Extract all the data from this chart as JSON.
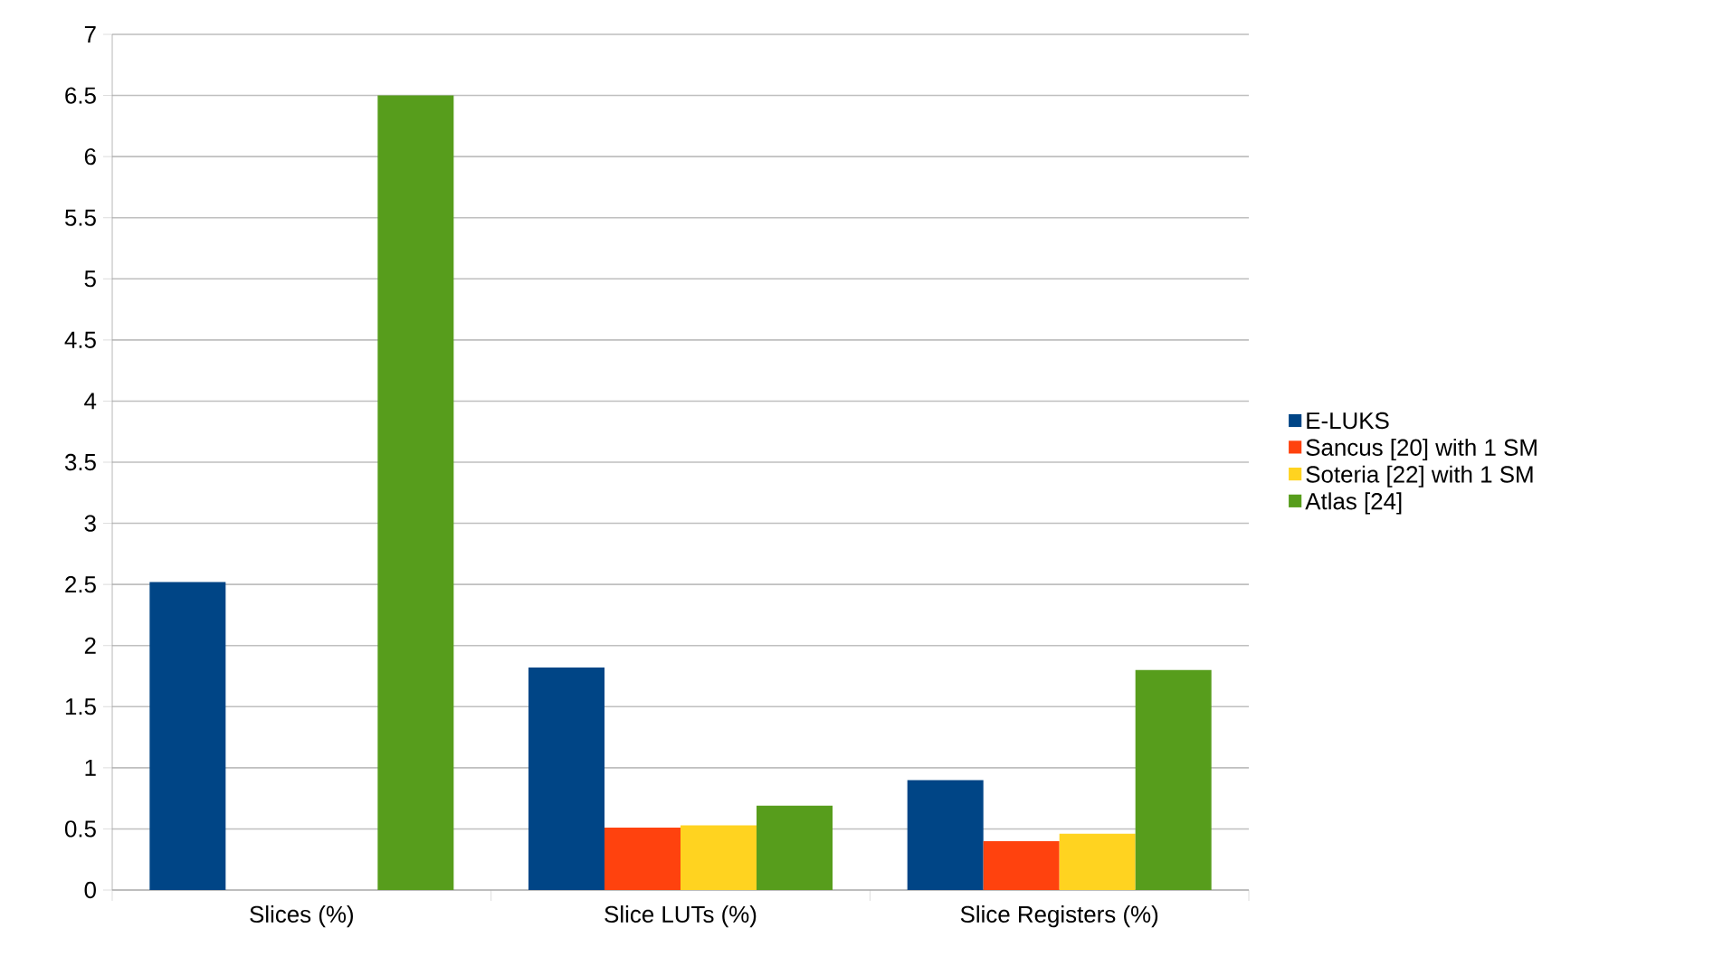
{
  "chart_data": {
    "type": "bar",
    "categories": [
      "Slices (%)",
      "Slice LUTs (%)",
      "Slice Registers (%)"
    ],
    "series": [
      {
        "name": "E-LUKS",
        "color": "#004586",
        "values": [
          2.52,
          1.82,
          0.9
        ]
      },
      {
        "name": "Sancus [20] with 1 SM",
        "color": "#ff420e",
        "values": [
          null,
          0.51,
          0.4
        ]
      },
      {
        "name": "Soteria [22] with 1 SM",
        "color": "#ffd320",
        "values": [
          null,
          0.53,
          0.46
        ]
      },
      {
        "name": "Atlas [24]",
        "color": "#579d1c",
        "values": [
          6.5,
          0.69,
          1.8
        ]
      }
    ],
    "ylim": [
      0,
      7
    ],
    "yticks": [
      0,
      0.5,
      1,
      1.5,
      2,
      2.5,
      3,
      3.5,
      4,
      4.5,
      5,
      5.5,
      6,
      6.5,
      7
    ],
    "grid": "y",
    "legend": "right"
  }
}
